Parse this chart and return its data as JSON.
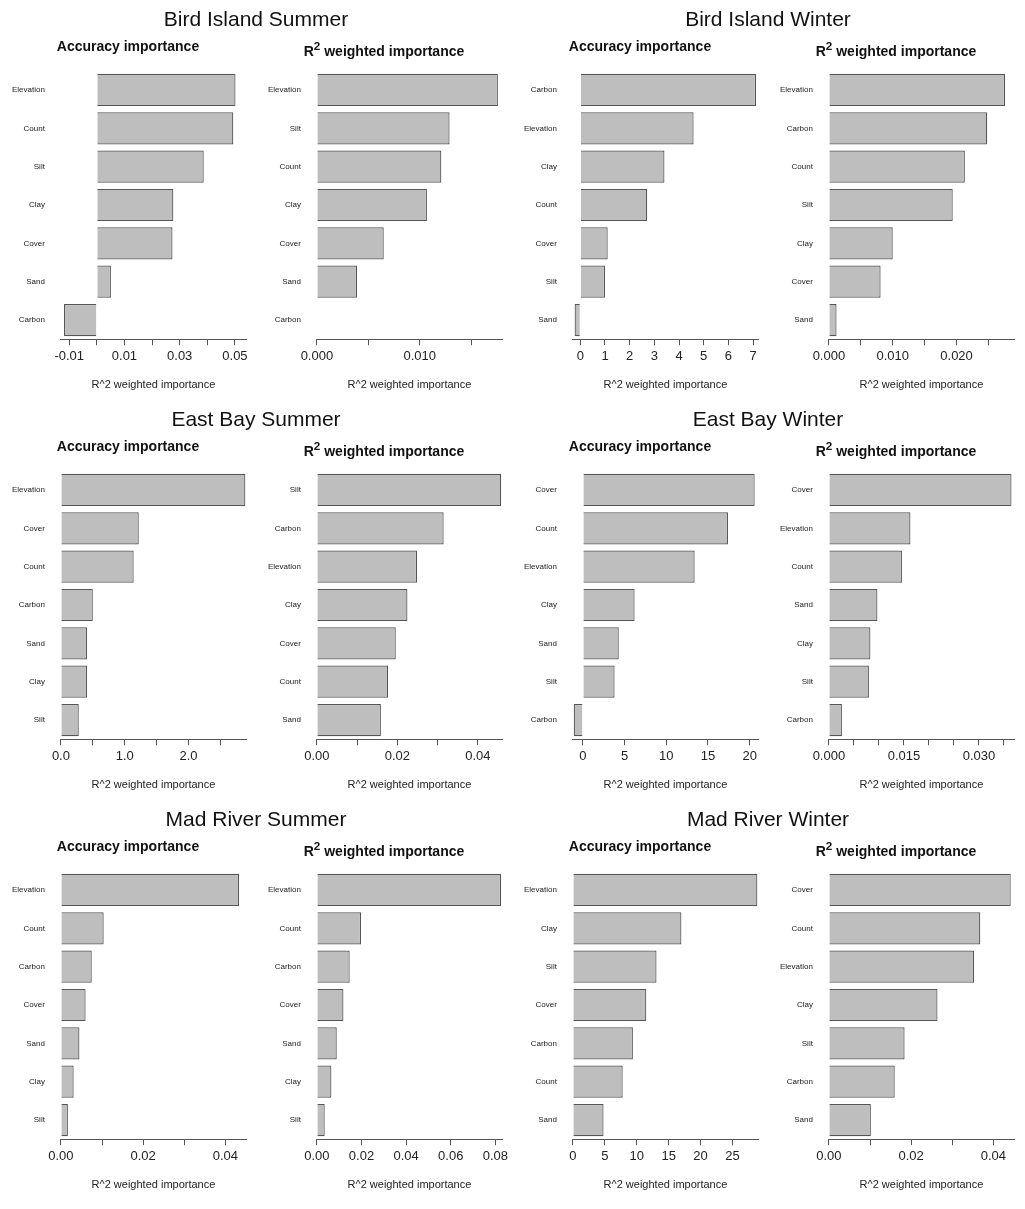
{
  "chart_data": [
    {
      "type": "bar",
      "orientation": "horizontal",
      "annotations": [
        "Bird Island Summer"
      ],
      "title": "Accuracy importance",
      "xlabel": "R^2 weighted importance",
      "categories": [
        "Elevation",
        "Count",
        "Silt",
        "Clay",
        "Cover",
        "Sand",
        "Carbon"
      ],
      "values": [
        0.0502,
        0.0494,
        0.0387,
        0.0277,
        0.0274,
        0.0051,
        -0.0119
      ],
      "color": "#bebebe",
      "xlim": [
        -0.013,
        0.054
      ],
      "xticks": [
        -0.01,
        {
          "value": 0,
          "label": null
        },
        0.01,
        {
          "value": 0.02,
          "label": null
        },
        0.03,
        {
          "value": 0.04,
          "label": null
        },
        0.05
      ]
    },
    {
      "type": "bar",
      "orientation": "horizontal",
      "title": "R$^{2}$ weighted importance",
      "xlabel": "R^2 weighted importance",
      "categories": [
        "Elevation",
        "Silt",
        "Count",
        "Clay",
        "Cover",
        "Sand",
        "Carbon"
      ],
      "values": [
        0.0176,
        0.0129,
        0.0121,
        0.0107,
        0.0065,
        0.0039,
        0
      ],
      "color": "#bebebe",
      "xlim": [
        0,
        0.018
      ],
      "xticks": [
        {
          "value": 0,
          "label": "0.000"
        },
        {
          "value": 0.005,
          "label": null
        },
        {
          "value": 0.01,
          "label": "0.010"
        },
        {
          "value": 0.015,
          "label": null
        }
      ]
    },
    {
      "type": "bar",
      "orientation": "horizontal",
      "annotations": [
        "Bird Island Winter"
      ],
      "title": "Accuracy importance",
      "xlabel": "R^2 weighted importance",
      "categories": [
        "Carbon",
        "Elevation",
        "Clay",
        "Count",
        "Cover",
        "Silt",
        "Sand"
      ],
      "values": [
        7.12,
        4.59,
        3.41,
        2.71,
        1.11,
        1.0,
        -0.23
      ],
      "color": "#bebebe",
      "xlim": [
        -0.3,
        7.2
      ],
      "xticks": [
        0,
        1,
        2,
        3,
        4,
        5,
        6,
        7
      ]
    },
    {
      "type": "bar",
      "orientation": "horizontal",
      "title": "R$^{2}$ weighted importance",
      "xlabel": "R^2 weighted importance",
      "categories": [
        "Elevation",
        "Carbon",
        "Count",
        "Silt",
        "Clay",
        "Cover",
        "Sand"
      ],
      "values": [
        0.0276,
        0.0248,
        0.0213,
        0.0194,
        0.01,
        0.0081,
        0.0012
      ],
      "color": "#bebebe",
      "xlim": [
        0,
        0.029
      ],
      "xticks": [
        {
          "value": 0,
          "label": "0.000"
        },
        {
          "value": 0.005,
          "label": null
        },
        {
          "value": 0.01,
          "label": "0.010"
        },
        {
          "value": 0.015,
          "label": null
        },
        {
          "value": 0.02,
          "label": "0.020"
        },
        {
          "value": 0.025,
          "label": null
        }
      ]
    },
    {
      "type": "bar",
      "orientation": "horizontal",
      "annotations": [
        "East Bay Summer"
      ],
      "title": "Accuracy importance",
      "xlabel": "R^2 weighted importance",
      "categories": [
        "Elevation",
        "Cover",
        "Count",
        "Carbon",
        "Sand",
        "Clay",
        "Silt"
      ],
      "values": [
        2.89,
        1.22,
        1.14,
        0.5,
        0.41,
        0.41,
        0.28
      ],
      "color": "#bebebe",
      "xlim": [
        0,
        2.9
      ],
      "xticks": [
        {
          "value": 0,
          "label": "0.0"
        },
        {
          "value": 0.5,
          "label": null
        },
        {
          "value": 1,
          "label": "1.0"
        },
        {
          "value": 1.5,
          "label": null
        },
        {
          "value": 2,
          "label": "2.0"
        },
        {
          "value": 2.5,
          "label": null
        }
      ]
    },
    {
      "type": "bar",
      "orientation": "horizontal",
      "title": "R$^{2}$ weighted importance",
      "xlabel": "R^2 weighted importance",
      "categories": [
        "Silt",
        "Carbon",
        "Elevation",
        "Clay",
        "Cover",
        "Count",
        "Sand"
      ],
      "values": [
        0.0458,
        0.0315,
        0.0249,
        0.0225,
        0.0196,
        0.0177,
        0.0159
      ],
      "color": "#bebebe",
      "xlim": [
        0,
        0.046
      ],
      "xticks": [
        {
          "value": 0,
          "label": "0.00"
        },
        {
          "value": 0.01,
          "label": null
        },
        {
          "value": 0.02,
          "label": "0.02"
        },
        {
          "value": 0.03,
          "label": null
        },
        {
          "value": 0.04,
          "label": "0.04"
        }
      ]
    },
    {
      "type": "bar",
      "orientation": "horizontal",
      "annotations": [
        "East Bay Winter"
      ],
      "title": "Accuracy importance",
      "xlabel": "R^2 weighted importance",
      "categories": [
        "Cover",
        "Count",
        "Elevation",
        "Clay",
        "Sand",
        "Silt",
        "Carbon"
      ],
      "values": [
        20.6,
        17.4,
        13.4,
        6.2,
        4.3,
        3.8,
        -1.1
      ],
      "color": "#bebebe",
      "xlim": [
        -1.2,
        21
      ],
      "xticks": [
        0,
        5,
        10,
        15,
        20
      ]
    },
    {
      "type": "bar",
      "orientation": "horizontal",
      "title": "R$^{2}$ weighted importance",
      "xlabel": "R^2 weighted importance",
      "categories": [
        "Cover",
        "Elevation",
        "Count",
        "Sand",
        "Clay",
        "Silt",
        "Carbon"
      ],
      "values": [
        0.0365,
        0.0163,
        0.0146,
        0.0097,
        0.0083,
        0.008,
        0.0026
      ],
      "color": "#bebebe",
      "xlim": [
        0,
        0.037
      ],
      "xticks": [
        {
          "value": 0,
          "label": "0.000"
        },
        {
          "value": 0.005,
          "label": null
        },
        {
          "value": 0.01,
          "label": null
        },
        {
          "value": 0.015,
          "label": "0.015"
        },
        {
          "value": 0.02,
          "label": null
        },
        {
          "value": 0.025,
          "label": null
        },
        {
          "value": 0.03,
          "label": "0.030"
        },
        {
          "value": 0.035,
          "label": null
        }
      ]
    },
    {
      "type": "bar",
      "orientation": "horizontal",
      "annotations": [
        "Mad River Summer"
      ],
      "title": "Accuracy importance",
      "xlabel": "R^2 weighted importance",
      "categories": [
        "Elevation",
        "Count",
        "Carbon",
        "Cover",
        "Sand",
        "Clay",
        "Silt"
      ],
      "values": [
        0.0433,
        0.0104,
        0.0075,
        0.006,
        0.0045,
        0.0031,
        0.0017
      ],
      "color": "#bebebe",
      "xlim": [
        0,
        0.045
      ],
      "xticks": [
        {
          "value": 0,
          "label": "0.00"
        },
        {
          "value": 0.01,
          "label": null
        },
        {
          "value": 0.02,
          "label": "0.02"
        },
        {
          "value": 0.03,
          "label": null
        },
        {
          "value": 0.04,
          "label": "0.04"
        }
      ]
    },
    {
      "type": "bar",
      "orientation": "horizontal",
      "title": "R$^{2}$ weighted importance",
      "xlabel": "R^2 weighted importance",
      "categories": [
        "Elevation",
        "Count",
        "Carbon",
        "Cover",
        "Sand",
        "Clay",
        "Silt"
      ],
      "values": [
        0.0826,
        0.0198,
        0.0147,
        0.0119,
        0.0089,
        0.0065,
        0.0035
      ],
      "color": "#bebebe",
      "xlim": [
        0,
        0.083
      ],
      "xticks": [
        {
          "value": 0,
          "label": "0.00"
        },
        0.02,
        0.04,
        0.06,
        0.08
      ]
    },
    {
      "type": "bar",
      "orientation": "horizontal",
      "annotations": [
        "Mad River Winter"
      ],
      "title": "Accuracy importance",
      "xlabel": "R^2 weighted importance",
      "categories": [
        "Elevation",
        "Clay",
        "Silt",
        "Cover",
        "Carbon",
        "Count",
        "Sand"
      ],
      "values": [
        28.9,
        17.0,
        13.1,
        11.5,
        9.4,
        7.8,
        4.8
      ],
      "color": "#bebebe",
      "xlim": [
        0,
        29
      ],
      "xticks": [
        0,
        5,
        10,
        15,
        20,
        25
      ]
    },
    {
      "type": "bar",
      "orientation": "horizontal",
      "title": "R$^{2}$ weighted importance",
      "xlabel": "R^2 weighted importance",
      "categories": [
        "Cover",
        "Count",
        "Elevation",
        "Clay",
        "Silt",
        "Carbon",
        "Sand"
      ],
      "values": [
        0.0442,
        0.0368,
        0.0353,
        0.0264,
        0.0184,
        0.016,
        0.0102
      ],
      "color": "#bebebe",
      "xlim": [
        0,
        0.045
      ],
      "xticks": [
        {
          "value": 0,
          "label": "0.00"
        },
        {
          "value": 0.01,
          "label": null
        },
        {
          "value": 0.02,
          "label": "0.02"
        },
        {
          "value": 0.03,
          "label": null
        },
        {
          "value": 0.04,
          "label": "0.04"
        }
      ]
    }
  ]
}
